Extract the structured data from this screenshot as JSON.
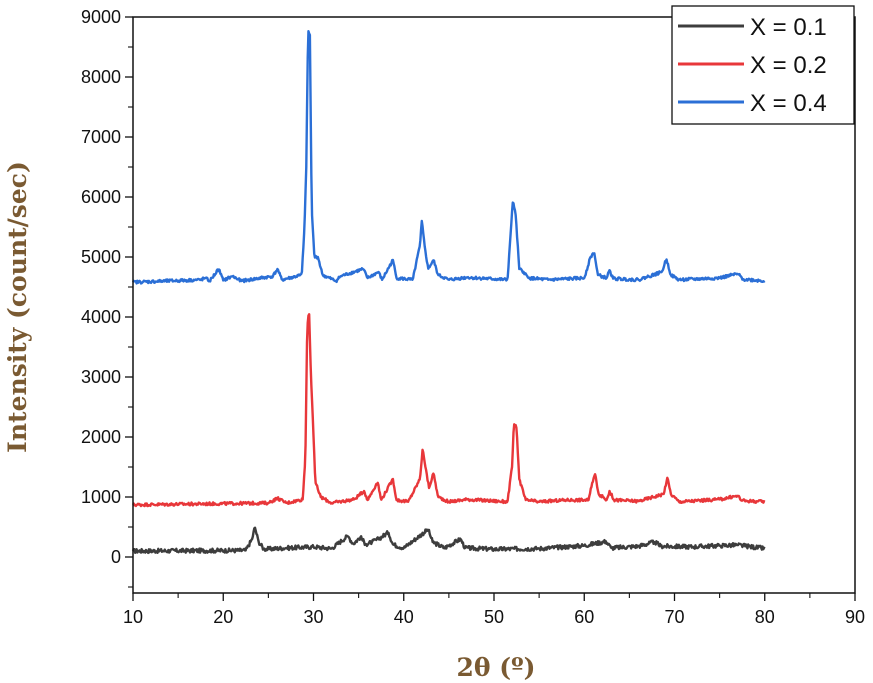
{
  "chart_data": {
    "type": "line",
    "xlabel": "2θ (º)",
    "ylabel": "Intensity (count/sec)",
    "xlim": [
      10,
      90
    ],
    "ylim": [
      -600,
      9000
    ],
    "x_ticks": [
      10,
      20,
      30,
      40,
      50,
      60,
      70,
      80,
      90
    ],
    "y_ticks": [
      0,
      1000,
      2000,
      3000,
      4000,
      5000,
      6000,
      7000,
      8000,
      9000
    ],
    "grid": false,
    "legend_position": "top-right",
    "series": [
      {
        "name": "X = 0.1",
        "color": "#3d3d3d",
        "baseline": 100,
        "noise": 35,
        "points": [
          [
            10,
            100
          ],
          [
            22.5,
            110
          ],
          [
            23.2,
            300
          ],
          [
            23.5,
            500
          ],
          [
            23.9,
            260
          ],
          [
            24.5,
            130
          ],
          [
            27,
            150
          ],
          [
            30,
            170
          ],
          [
            32,
            140
          ],
          [
            33.8,
            350
          ],
          [
            34.4,
            220
          ],
          [
            35.2,
            330
          ],
          [
            35.8,
            210
          ],
          [
            36.5,
            250
          ],
          [
            37.2,
            300
          ],
          [
            38.3,
            410
          ],
          [
            38.8,
            210
          ],
          [
            40,
            150
          ],
          [
            42.7,
            460
          ],
          [
            43.2,
            250
          ],
          [
            44.5,
            150
          ],
          [
            46.3,
            300
          ],
          [
            46.8,
            150
          ],
          [
            50,
            130
          ],
          [
            55,
            140
          ],
          [
            60,
            190
          ],
          [
            62.4,
            260
          ],
          [
            63,
            150
          ],
          [
            66,
            180
          ],
          [
            67.8,
            250
          ],
          [
            68.5,
            180
          ],
          [
            72,
            170
          ],
          [
            75,
            190
          ],
          [
            77,
            200
          ],
          [
            80,
            140
          ]
        ]
      },
      {
        "name": "X = 0.2",
        "color": "#e8373a",
        "baseline": 870,
        "noise": 25,
        "points": [
          [
            10,
            870
          ],
          [
            25,
            900
          ],
          [
            26,
            980
          ],
          [
            27,
            900
          ],
          [
            28.8,
            960
          ],
          [
            29.1,
            1650
          ],
          [
            29.3,
            3800
          ],
          [
            29.5,
            4150
          ],
          [
            29.7,
            3100
          ],
          [
            29.9,
            2400
          ],
          [
            30.2,
            1250
          ],
          [
            30.8,
            1000
          ],
          [
            32,
            900
          ],
          [
            34.5,
            960
          ],
          [
            35.6,
            1100
          ],
          [
            36,
            950
          ],
          [
            37.1,
            1250
          ],
          [
            37.5,
            950
          ],
          [
            38.8,
            1300
          ],
          [
            39.2,
            950
          ],
          [
            40.5,
            920
          ],
          [
            41.8,
            1300
          ],
          [
            42.1,
            1820
          ],
          [
            42.4,
            1500
          ],
          [
            42.8,
            1150
          ],
          [
            43.3,
            1400
          ],
          [
            43.8,
            1000
          ],
          [
            45,
            920
          ],
          [
            47,
            960
          ],
          [
            51.5,
            920
          ],
          [
            52,
            1500
          ],
          [
            52.2,
            2220
          ],
          [
            52.5,
            2150
          ],
          [
            52.8,
            1300
          ],
          [
            53.5,
            950
          ],
          [
            55,
            920
          ],
          [
            58,
            950
          ],
          [
            60.5,
            950
          ],
          [
            60.9,
            1250
          ],
          [
            61.2,
            1380
          ],
          [
            61.6,
            1050
          ],
          [
            62.5,
            950
          ],
          [
            62.8,
            1100
          ],
          [
            63.3,
            950
          ],
          [
            66,
            930
          ],
          [
            68.8,
            1050
          ],
          [
            69.2,
            1320
          ],
          [
            69.6,
            1050
          ],
          [
            70.5,
            920
          ],
          [
            75,
            960
          ],
          [
            77,
            1020
          ],
          [
            77.5,
            940
          ],
          [
            80,
            920
          ]
        ]
      },
      {
        "name": "X = 0.4",
        "color": "#2b6fd6",
        "baseline": 4580,
        "noise": 25,
        "points": [
          [
            10,
            4580
          ],
          [
            17.5,
            4620
          ],
          [
            18,
            4650
          ],
          [
            18.5,
            4600
          ],
          [
            19.5,
            4800
          ],
          [
            20,
            4610
          ],
          [
            21,
            4680
          ],
          [
            22,
            4600
          ],
          [
            25.5,
            4680
          ],
          [
            26,
            4800
          ],
          [
            26.5,
            4620
          ],
          [
            28.7,
            4700
          ],
          [
            29,
            5500
          ],
          [
            29.2,
            6500
          ],
          [
            29.4,
            8780
          ],
          [
            29.6,
            8700
          ],
          [
            29.8,
            5800
          ],
          [
            30.1,
            5000
          ],
          [
            30.5,
            5000
          ],
          [
            31,
            4700
          ],
          [
            32.5,
            4600
          ],
          [
            33,
            4680
          ],
          [
            35.5,
            4800
          ],
          [
            36,
            4650
          ],
          [
            37.2,
            4750
          ],
          [
            37.6,
            4620
          ],
          [
            38.8,
            4950
          ],
          [
            39.2,
            4650
          ],
          [
            41,
            4620
          ],
          [
            41.8,
            5200
          ],
          [
            42,
            5600
          ],
          [
            42.3,
            5200
          ],
          [
            42.7,
            4800
          ],
          [
            43.3,
            4950
          ],
          [
            43.8,
            4700
          ],
          [
            45,
            4620
          ],
          [
            47,
            4660
          ],
          [
            51.5,
            4620
          ],
          [
            51.8,
            5300
          ],
          [
            52.1,
            5950
          ],
          [
            52.4,
            5700
          ],
          [
            52.8,
            4800
          ],
          [
            53.3,
            4750
          ],
          [
            53.8,
            4650
          ],
          [
            56,
            4620
          ],
          [
            60,
            4650
          ],
          [
            60.7,
            5000
          ],
          [
            61.1,
            5080
          ],
          [
            61.5,
            4700
          ],
          [
            62.5,
            4650
          ],
          [
            62.8,
            4780
          ],
          [
            63.2,
            4640
          ],
          [
            66,
            4620
          ],
          [
            68.6,
            4750
          ],
          [
            69.1,
            4970
          ],
          [
            69.6,
            4700
          ],
          [
            70.5,
            4620
          ],
          [
            75,
            4650
          ],
          [
            77,
            4720
          ],
          [
            77.6,
            4630
          ],
          [
            80,
            4600
          ]
        ]
      }
    ]
  }
}
